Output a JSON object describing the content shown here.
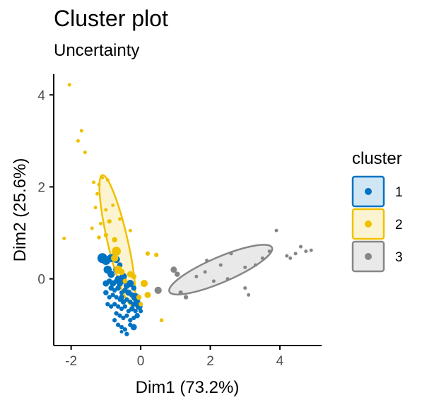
{
  "chart_data": {
    "type": "scatter",
    "title": "Cluster plot",
    "subtitle": "Uncertainty",
    "xlabel": "Dim1 (73.2%)",
    "ylabel": "Dim2 (25.6%)",
    "xlim": [
      -2.5,
      5.2
    ],
    "ylim": [
      -1.45,
      4.45
    ],
    "xticks": [
      -2,
      0,
      2,
      4
    ],
    "yticks": [
      0,
      2,
      4
    ],
    "grid": false,
    "legend": {
      "title": "cluster",
      "position": "right"
    },
    "series": [
      {
        "name": "1",
        "color": "#0073C2",
        "points": [
          [
            -1.1,
            0.45,
            0.9
          ],
          [
            -1.0,
            0.4,
            0.8
          ],
          [
            -0.85,
            0.45,
            0.7
          ],
          [
            -0.7,
            0.42,
            0.6
          ],
          [
            -0.95,
            0.2,
            0.7
          ],
          [
            -0.85,
            0.1,
            0.6
          ],
          [
            -0.7,
            0.2,
            0.5
          ],
          [
            -0.6,
            0.3,
            0.4
          ],
          [
            -1.0,
            -0.1,
            0.5
          ],
          [
            -0.9,
            -0.05,
            0.4
          ],
          [
            -0.8,
            -0.1,
            0.5
          ],
          [
            -0.7,
            -0.05,
            0.4
          ],
          [
            -0.6,
            -0.1,
            0.5
          ],
          [
            -0.5,
            -0.05,
            0.4
          ],
          [
            -0.4,
            -0.15,
            0.5
          ],
          [
            -0.3,
            -0.1,
            0.6
          ],
          [
            -0.85,
            -0.2,
            0.4
          ],
          [
            -0.75,
            -0.25,
            0.3
          ],
          [
            -0.65,
            -0.2,
            0.4
          ],
          [
            -0.55,
            -0.3,
            0.3
          ],
          [
            -0.45,
            -0.25,
            0.4
          ],
          [
            -0.35,
            -0.3,
            0.5
          ],
          [
            -0.25,
            -0.35,
            0.4
          ],
          [
            -0.15,
            -0.4,
            0.7
          ],
          [
            -0.8,
            -0.35,
            0.3
          ],
          [
            -0.7,
            -0.4,
            0.3
          ],
          [
            -0.6,
            -0.45,
            0.3
          ],
          [
            -0.5,
            -0.5,
            0.4
          ],
          [
            -0.4,
            -0.45,
            0.3
          ],
          [
            -0.3,
            -0.5,
            0.3
          ],
          [
            -0.2,
            -0.55,
            0.4
          ],
          [
            -0.1,
            -0.5,
            0.5
          ],
          [
            -0.75,
            -0.55,
            0.3
          ],
          [
            -0.65,
            -0.6,
            0.3
          ],
          [
            -0.55,
            -0.65,
            0.3
          ],
          [
            -0.45,
            -0.6,
            0.3
          ],
          [
            -0.35,
            -0.7,
            0.3
          ],
          [
            -0.25,
            -0.65,
            0.4
          ],
          [
            -0.15,
            -0.7,
            0.3
          ],
          [
            -0.05,
            -0.6,
            0.6
          ],
          [
            -0.7,
            -0.75,
            0.3
          ],
          [
            -0.6,
            -0.8,
            0.3
          ],
          [
            -0.5,
            -0.85,
            0.3
          ],
          [
            -0.4,
            -0.8,
            0.3
          ],
          [
            -0.3,
            -0.9,
            0.3
          ],
          [
            -0.2,
            -0.85,
            0.3
          ],
          [
            -0.1,
            -0.8,
            0.4
          ],
          [
            0.0,
            -0.7,
            0.3
          ],
          [
            -0.75,
            -0.9,
            0.3
          ],
          [
            -0.65,
            -1.0,
            0.3
          ],
          [
            -0.55,
            -1.05,
            0.3
          ],
          [
            -0.45,
            -1.1,
            0.3
          ],
          [
            -0.4,
            -1.2,
            0.3
          ],
          [
            -0.55,
            -1.15,
            0.2
          ],
          [
            -0.3,
            -1.0,
            0.3
          ],
          [
            -0.2,
            -1.05,
            0.5
          ],
          [
            -0.9,
            -0.4,
            0.3
          ],
          [
            -0.95,
            -0.55,
            0.3
          ],
          [
            -1.0,
            -0.3,
            0.4
          ],
          [
            -0.85,
            -0.6,
            0.3
          ],
          [
            -0.5,
            0.05,
            0.6
          ],
          [
            -0.65,
            0.0,
            0.5
          ],
          [
            -0.2,
            -0.2,
            0.4
          ],
          [
            -0.55,
            -0.4,
            0.4
          ]
        ]
      },
      {
        "name": "2",
        "color": "#EFC000",
        "points": [
          [
            -2.05,
            4.22,
            0.2
          ],
          [
            -1.7,
            3.22,
            0.2
          ],
          [
            -1.8,
            3.0,
            0.2
          ],
          [
            -1.6,
            2.75,
            0.2
          ],
          [
            -1.35,
            2.1,
            0.2
          ],
          [
            -1.2,
            2.05,
            0.2
          ],
          [
            -1.1,
            2.2,
            0.15
          ],
          [
            -0.95,
            2.15,
            0.2
          ],
          [
            -1.25,
            1.85,
            0.2
          ],
          [
            -1.3,
            1.55,
            0.2
          ],
          [
            -1.0,
            1.5,
            0.2
          ],
          [
            -0.8,
            1.6,
            0.2
          ],
          [
            -1.4,
            1.1,
            0.2
          ],
          [
            -1.15,
            1.2,
            0.2
          ],
          [
            -0.9,
            1.25,
            0.3
          ],
          [
            -0.6,
            1.3,
            0.2
          ],
          [
            -0.3,
            1.05,
            0.2
          ],
          [
            -1.2,
            0.9,
            0.25
          ],
          [
            -1.0,
            0.95,
            0.3
          ],
          [
            -0.75,
            0.85,
            0.4
          ],
          [
            -2.2,
            0.88,
            0.2
          ],
          [
            -0.7,
            0.6,
            0.8
          ],
          [
            -0.75,
            0.45,
            0.6
          ],
          [
            -0.65,
            0.2,
            0.7
          ],
          [
            -0.55,
            0.15,
            0.5
          ],
          [
            -0.3,
            0.1,
            0.5
          ],
          [
            -0.2,
            0.05,
            0.4
          ],
          [
            0.2,
            0.55,
            0.3
          ],
          [
            0.45,
            0.52,
            0.3
          ],
          [
            0.1,
            -0.1,
            0.6
          ],
          [
            0.2,
            -0.35,
            0.5
          ],
          [
            -0.05,
            -0.4,
            0.4
          ],
          [
            0.0,
            -0.55,
            0.3
          ],
          [
            0.6,
            -0.9,
            0.25
          ],
          [
            -0.45,
            -0.05,
            0.35
          ]
        ]
      },
      {
        "name": "3",
        "color": "#868686",
        "points": [
          [
            0.95,
            0.2,
            0.5
          ],
          [
            1.05,
            0.1,
            0.4
          ],
          [
            0.5,
            -0.25,
            0.6
          ],
          [
            1.15,
            -0.3,
            0.3
          ],
          [
            1.3,
            -0.4,
            0.3
          ],
          [
            1.6,
            0.05,
            0.2
          ],
          [
            1.85,
            0.15,
            0.2
          ],
          [
            1.9,
            0.4,
            0.2
          ],
          [
            2.3,
            0.3,
            0.2
          ],
          [
            2.1,
            -0.05,
            0.2
          ],
          [
            2.5,
            0.0,
            0.2
          ],
          [
            2.6,
            0.55,
            0.2
          ],
          [
            3.0,
            0.25,
            0.2
          ],
          [
            3.3,
            0.3,
            0.2
          ],
          [
            3.0,
            -0.2,
            0.2
          ],
          [
            3.1,
            -0.35,
            0.2
          ],
          [
            3.5,
            0.45,
            0.2
          ],
          [
            3.7,
            0.6,
            0.2
          ],
          [
            3.9,
            1.05,
            0.2
          ],
          [
            4.2,
            0.5,
            0.2
          ],
          [
            4.3,
            0.45,
            0.2
          ],
          [
            4.45,
            0.55,
            0.2
          ],
          [
            4.6,
            0.7,
            0.2
          ],
          [
            4.75,
            0.6,
            0.2
          ],
          [
            4.9,
            0.62,
            0.2
          ]
        ]
      }
    ],
    "ellipses": [
      {
        "name": "2",
        "color": "#EFC000",
        "fill": "#EFC000",
        "center": [
          -0.67,
          0.84
        ],
        "rx": 1.48,
        "ry": 0.28,
        "angle_deg": -73
      },
      {
        "name": "3",
        "color": "#868686",
        "fill": "#868686",
        "center": [
          2.3,
          0.2
        ],
        "rx": 1.55,
        "ry": 0.28,
        "angle_deg": 18
      }
    ]
  }
}
